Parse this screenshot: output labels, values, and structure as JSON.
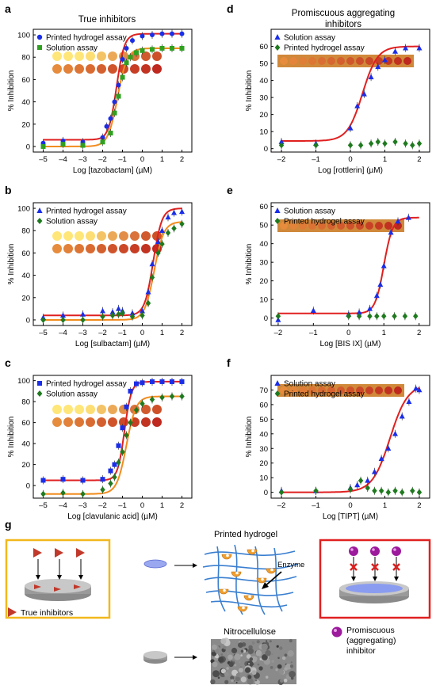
{
  "colors": {
    "red": "#e02020",
    "orange": "#f28c1e",
    "blue": "#1a2ee8",
    "green_sq": "#2fa020",
    "green_dia": "#1f7a1f",
    "frame_yellow": "#f2b81c",
    "frame_red": "#e02020",
    "fiber": "#3a7fd0"
  },
  "chart_data": [
    {
      "panel": "a",
      "type": "line",
      "title": "True inhibitors",
      "xlabel": "Log [tazobactam] (µM)",
      "ylabel": "% Inhibition",
      "xlim": [
        -5.5,
        2.5
      ],
      "ylim": [
        -5,
        105
      ],
      "xticks": [
        -5,
        -4,
        -3,
        -2,
        -1,
        0,
        1,
        2
      ],
      "yticks": [
        0,
        20,
        40,
        60,
        80,
        100
      ],
      "legend": [
        {
          "label": "Printed hydrogel assay",
          "marker": "circle",
          "color": "blue"
        },
        {
          "label": "Solution assay",
          "marker": "square",
          "color": "green_sq"
        }
      ],
      "curves": [
        {
          "color": "red",
          "bottom": 6,
          "top": 101,
          "ec50": -1.3,
          "hill": 2.2
        },
        {
          "color": "orange",
          "bottom": 0,
          "top": 88,
          "ec50": -1.25,
          "hill": 1.8
        }
      ],
      "series": [
        {
          "name": "Printed hydrogel assay",
          "marker": "circle",
          "color": "blue",
          "points": [
            [
              -5,
              3
            ],
            [
              -4,
              5
            ],
            [
              -3,
              4
            ],
            [
              -2,
              8
            ],
            [
              -1.8,
              18
            ],
            [
              -1.6,
              25
            ],
            [
              -1.4,
              40
            ],
            [
              -1.2,
              55
            ],
            [
              -1,
              78
            ],
            [
              -0.8,
              88
            ],
            [
              -0.5,
              95
            ],
            [
              0,
              99
            ],
            [
              0.5,
              100
            ],
            [
              1,
              101
            ],
            [
              1.5,
              101
            ],
            [
              2,
              101
            ]
          ]
        },
        {
          "name": "Solution assay",
          "marker": "square",
          "color": "green_sq",
          "points": [
            [
              -5,
              0
            ],
            [
              -4,
              2
            ],
            [
              -3,
              1
            ],
            [
              -2,
              4
            ],
            [
              -1.6,
              12
            ],
            [
              -1.4,
              30
            ],
            [
              -1.2,
              45
            ],
            [
              -1,
              62
            ],
            [
              -0.8,
              75
            ],
            [
              -0.6,
              80
            ],
            [
              -0.3,
              84
            ],
            [
              0,
              86
            ],
            [
              0.5,
              87
            ],
            [
              1,
              88
            ],
            [
              1.5,
              88
            ],
            [
              2,
              88
            ]
          ]
        }
      ]
    },
    {
      "panel": "b",
      "type": "line",
      "xlabel": "Log [sulbactam] (µM)",
      "ylabel": "% Inhibition",
      "xlim": [
        -5.5,
        2.5
      ],
      "ylim": [
        -5,
        105
      ],
      "xticks": [
        -5,
        -4,
        -3,
        -2,
        -1,
        0,
        1,
        2
      ],
      "yticks": [
        0,
        20,
        40,
        60,
        80,
        100
      ],
      "legend": [
        {
          "label": "Printed hydrogel assay",
          "marker": "triangle",
          "color": "blue"
        },
        {
          "label": "Solution assay",
          "marker": "diamond",
          "color": "green_dia"
        }
      ],
      "curves": [
        {
          "color": "red",
          "bottom": 4,
          "top": 100,
          "ec50": 0.55,
          "hill": 2.0
        },
        {
          "color": "orange",
          "bottom": 0,
          "top": 88,
          "ec50": 0.6,
          "hill": 1.8
        }
      ],
      "series": [
        {
          "name": "Printed hydrogel assay",
          "marker": "triangle",
          "color": "blue",
          "points": [
            [
              -5,
              2
            ],
            [
              -4,
              4
            ],
            [
              -3,
              5
            ],
            [
              -2,
              8
            ],
            [
              -1.5,
              7
            ],
            [
              -1.2,
              10
            ],
            [
              -1,
              8
            ],
            [
              -0.5,
              6
            ],
            [
              0,
              8
            ],
            [
              0.3,
              25
            ],
            [
              0.5,
              50
            ],
            [
              0.8,
              70
            ],
            [
              1,
              80
            ],
            [
              1.3,
              92
            ],
            [
              1.6,
              96
            ],
            [
              2,
              97
            ]
          ]
        },
        {
          "name": "Solution assay",
          "marker": "diamond",
          "color": "green_dia",
          "points": [
            [
              -5,
              0
            ],
            [
              -4,
              0
            ],
            [
              -3,
              0
            ],
            [
              -2,
              3
            ],
            [
              -1.5,
              4
            ],
            [
              -1.2,
              5
            ],
            [
              -1,
              6
            ],
            [
              -0.5,
              3
            ],
            [
              0,
              4
            ],
            [
              0.3,
              15
            ],
            [
              0.5,
              38
            ],
            [
              0.8,
              60
            ],
            [
              1,
              68
            ],
            [
              1.3,
              78
            ],
            [
              1.6,
              82
            ],
            [
              2,
              86
            ]
          ]
        }
      ]
    },
    {
      "panel": "c",
      "type": "line",
      "xlabel": "Log [clavulanic acid] (µM)",
      "ylabel": "% Inhibition",
      "xlim": [
        -5.5,
        2.5
      ],
      "ylim": [
        -12,
        105
      ],
      "xticks": [
        -5,
        -4,
        -3,
        -2,
        -1,
        0,
        1,
        2
      ],
      "yticks": [
        0,
        20,
        40,
        60,
        80,
        100
      ],
      "legend": [
        {
          "label": "Printed hydrogel assay",
          "marker": "square",
          "color": "blue"
        },
        {
          "label": "Solution assay",
          "marker": "diamond",
          "color": "green_dia"
        }
      ],
      "curves": [
        {
          "color": "red",
          "bottom": 5,
          "top": 99,
          "ec50": -0.9,
          "hill": 2.5
        },
        {
          "color": "orange",
          "bottom": -8,
          "top": 85,
          "ec50": -0.8,
          "hill": 1.8
        }
      ],
      "series": [
        {
          "name": "Printed hydrogel assay",
          "marker": "square",
          "color": "blue",
          "points": [
            [
              -5,
              5
            ],
            [
              -4,
              6
            ],
            [
              -3,
              5
            ],
            [
              -2,
              6
            ],
            [
              -1.6,
              14
            ],
            [
              -1.4,
              20
            ],
            [
              -1.2,
              38
            ],
            [
              -1,
              55
            ],
            [
              -0.8,
              75
            ],
            [
              -0.6,
              90
            ],
            [
              -0.3,
              97
            ],
            [
              0,
              98
            ],
            [
              0.5,
              99
            ],
            [
              1,
              99
            ],
            [
              1.5,
              99
            ],
            [
              2,
              99
            ]
          ]
        },
        {
          "name": "Solution assay",
          "marker": "diamond",
          "color": "green_dia",
          "points": [
            [
              -5,
              -8
            ],
            [
              -4,
              -7
            ],
            [
              -3,
              -8
            ],
            [
              -2,
              -4
            ],
            [
              -1.6,
              2
            ],
            [
              -1.4,
              8
            ],
            [
              -1.2,
              22
            ],
            [
              -1,
              32
            ],
            [
              -0.8,
              48
            ],
            [
              -0.6,
              60
            ],
            [
              -0.3,
              72
            ],
            [
              0,
              78
            ],
            [
              0.5,
              82
            ],
            [
              1,
              84
            ],
            [
              1.5,
              85
            ],
            [
              2,
              85
            ]
          ]
        }
      ]
    },
    {
      "panel": "d",
      "type": "line",
      "title": "Promiscuous aggregating\ninhibitors",
      "xlabel": "Log [rottlerin] (µM)",
      "ylabel": "% Inhibition",
      "xlim": [
        -2.3,
        2.3
      ],
      "ylim": [
        -2,
        70
      ],
      "xticks": [
        -2,
        -1,
        0,
        1,
        2
      ],
      "yticks": [
        0,
        10,
        20,
        30,
        40,
        50,
        60
      ],
      "legend": [
        {
          "label": "Solution assay",
          "marker": "triangle",
          "color": "blue"
        },
        {
          "label": "Printed hydrogel assay",
          "marker": "diamond",
          "color": "green_dia"
        }
      ],
      "curves": [
        {
          "color": "red",
          "bottom": 4.5,
          "top": 60,
          "ec50": 0.35,
          "hill": 2.0
        }
      ],
      "series": [
        {
          "name": "Solution assay",
          "marker": "triangle",
          "color": "blue",
          "points": [
            [
              -2,
              4
            ],
            [
              -1,
              3
            ],
            [
              0,
              12
            ],
            [
              0.2,
              25
            ],
            [
              0.4,
              32
            ],
            [
              0.6,
              42
            ],
            [
              0.8,
              48
            ],
            [
              1,
              52
            ],
            [
              1.3,
              57
            ],
            [
              1.6,
              59
            ],
            [
              2,
              59
            ]
          ]
        },
        {
          "name": "Printed hydrogel assay",
          "marker": "diamond",
          "color": "green_dia",
          "points": [
            [
              -2,
              2
            ],
            [
              -1,
              2
            ],
            [
              0,
              2
            ],
            [
              0.3,
              2
            ],
            [
              0.6,
              3
            ],
            [
              0.8,
              4
            ],
            [
              1,
              3
            ],
            [
              1.3,
              4
            ],
            [
              1.6,
              3
            ],
            [
              1.8,
              2
            ],
            [
              2,
              3
            ]
          ]
        }
      ]
    },
    {
      "panel": "e",
      "type": "line",
      "xlabel": "Log [BIS IX] (µM)",
      "ylabel": "% Inhibition",
      "xlim": [
        -2.2,
        2.3
      ],
      "ylim": [
        -4,
        62
      ],
      "xticks": [
        -2,
        -1,
        0,
        1,
        2
      ],
      "yticks": [
        0,
        10,
        20,
        30,
        40,
        50,
        60
      ],
      "legend": [
        {
          "label": "Solution assay",
          "marker": "triangle",
          "color": "blue"
        },
        {
          "label": "Printed hydrogel assay",
          "marker": "diamond",
          "color": "green_dia"
        }
      ],
      "curves": [
        {
          "color": "red",
          "bottom": 2.5,
          "top": 54,
          "ec50": 1.0,
          "hill": 3.5
        }
      ],
      "series": [
        {
          "name": "Solution assay",
          "marker": "triangle",
          "color": "blue",
          "points": [
            [
              -2,
              -1
            ],
            [
              -1,
              4
            ],
            [
              0,
              2
            ],
            [
              0.3,
              3
            ],
            [
              0.6,
              5
            ],
            [
              0.8,
              12
            ],
            [
              0.9,
              18
            ],
            [
              1,
              28
            ],
            [
              1.2,
              46
            ],
            [
              1.4,
              52
            ],
            [
              1.7,
              54
            ]
          ]
        },
        {
          "name": "Printed hydrogel assay",
          "marker": "diamond",
          "color": "green_dia",
          "points": [
            [
              -2,
              1
            ],
            [
              0,
              1
            ],
            [
              0.3,
              1
            ],
            [
              0.6,
              1
            ],
            [
              0.8,
              1
            ],
            [
              1,
              1
            ],
            [
              1.3,
              1
            ],
            [
              1.6,
              1
            ],
            [
              1.9,
              1
            ]
          ]
        }
      ]
    },
    {
      "panel": "f",
      "type": "line",
      "xlabel": "Log [TIPT] (µM)",
      "ylabel": "% Inhibition",
      "xlim": [
        -2.3,
        2.3
      ],
      "ylim": [
        -4,
        80
      ],
      "xticks": [
        -2,
        -1,
        0,
        1,
        2
      ],
      "yticks": [
        0,
        10,
        20,
        30,
        40,
        50,
        60,
        70
      ],
      "legend": [
        {
          "label": "Solution assay",
          "marker": "triangle",
          "color": "blue"
        },
        {
          "label": "Printed hydrogel assay",
          "marker": "diamond",
          "color": "green_dia"
        }
      ],
      "curves": [
        {
          "color": "red",
          "bottom": 0,
          "top": 74,
          "ec50": 1.15,
          "hill": 1.7
        }
      ],
      "series": [
        {
          "name": "Solution assay",
          "marker": "triangle",
          "color": "blue",
          "points": [
            [
              -2,
              1
            ],
            [
              -1,
              1
            ],
            [
              0,
              3
            ],
            [
              0.2,
              5
            ],
            [
              0.5,
              8
            ],
            [
              0.7,
              14
            ],
            [
              0.9,
              23
            ],
            [
              1.1,
              30
            ],
            [
              1.3,
              40
            ],
            [
              1.5,
              52
            ],
            [
              1.7,
              62
            ],
            [
              1.9,
              71
            ],
            [
              2,
              70
            ]
          ]
        },
        {
          "name": "Printed hydrogel assay",
          "marker": "diamond",
          "color": "green_dia",
          "points": [
            [
              -2,
              0
            ],
            [
              -1,
              1
            ],
            [
              0,
              2
            ],
            [
              0.3,
              8
            ],
            [
              0.5,
              3
            ],
            [
              0.7,
              1
            ],
            [
              0.9,
              1
            ],
            [
              1.1,
              0
            ],
            [
              1.3,
              1
            ],
            [
              1.5,
              0
            ],
            [
              1.8,
              1
            ],
            [
              2,
              0
            ]
          ]
        }
      ]
    }
  ],
  "panel_labels": {
    "a": "a",
    "b": "b",
    "c": "c",
    "d": "d",
    "e": "e",
    "f": "f",
    "g": "g"
  },
  "schematic": {
    "printed_hydrogel": "Printed hydrogel",
    "enzyme": "Enzyme",
    "nitrocellulose": "Nitrocellulose",
    "true_inhibitors": "True inhibitors",
    "promiscuous": [
      "Promiscuous",
      "(aggregating)",
      "inhibitor"
    ]
  }
}
